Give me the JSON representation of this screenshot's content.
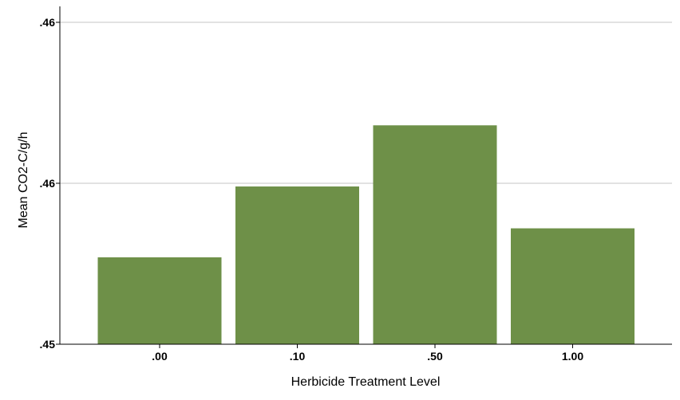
{
  "chart_data": {
    "type": "bar",
    "title": "",
    "xlabel": "Herbicide Treatment Level",
    "ylabel": "Mean CO2-C/g/h",
    "categories": [
      ".00",
      ".10",
      ".50",
      "1.00"
    ],
    "values": [
      0.4527,
      0.4549,
      0.4568,
      0.4536
    ],
    "ylim": [
      0.45,
      0.46
    ],
    "yticks": [
      {
        "value": 0.45,
        "label": ".45"
      },
      {
        "value": 0.455,
        "label": ".46"
      },
      {
        "value": 0.46,
        "label": ".46"
      }
    ],
    "grid": true,
    "bar_color": "#6e9048",
    "legend": "none"
  }
}
